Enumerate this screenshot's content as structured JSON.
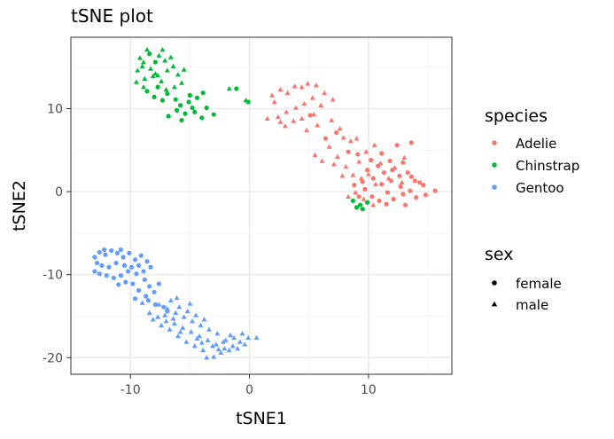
{
  "chart_data": {
    "type": "scatter",
    "title": "tSNE plot",
    "xlabel": "tSNE1",
    "ylabel": "tSNE2",
    "xlim": [
      -15,
      17
    ],
    "ylim": [
      -22,
      18.6
    ],
    "x_ticks": [
      -10,
      0,
      10
    ],
    "x_tick_labels": [
      "-10",
      "0",
      "10"
    ],
    "y_ticks": [
      -20,
      -10,
      0,
      10
    ],
    "y_tick_labels": [
      "-20",
      "-10",
      "0",
      "10"
    ],
    "grid": true,
    "legend_placement": "right",
    "legends": {
      "color": {
        "title": "species",
        "entries": [
          {
            "label": "Adelie",
            "color": "#f8766d"
          },
          {
            "label": "Chinstrap",
            "color": "#00ba38"
          },
          {
            "label": "Gentoo",
            "color": "#619cff"
          }
        ]
      },
      "shape": {
        "title": "sex",
        "entries": [
          {
            "label": "female",
            "shape": "circle"
          },
          {
            "label": "male",
            "shape": "triangle"
          }
        ]
      }
    },
    "series": [
      {
        "species": "Adelie",
        "sex": "female",
        "points": [
          [
            5.1,
            9.2
          ],
          [
            6.4,
            6.4
          ],
          [
            7.3,
            7.1
          ],
          [
            8.3,
            4.8
          ],
          [
            9.1,
            4.5
          ],
          [
            10.2,
            3.8
          ],
          [
            10.8,
            3.1
          ],
          [
            11.3,
            2.3
          ],
          [
            12.0,
            2.6
          ],
          [
            12.6,
            1.9
          ],
          [
            13.3,
            2.3
          ],
          [
            13.9,
            1.3
          ],
          [
            14.6,
            0.8
          ],
          [
            15.6,
            0.1
          ],
          [
            14.8,
            -0.4
          ],
          [
            14.0,
            -0.7
          ],
          [
            13.5,
            0.1
          ],
          [
            12.9,
            -0.3
          ],
          [
            12.1,
            -0.9
          ],
          [
            11.5,
            -1.5
          ],
          [
            10.9,
            -1.1
          ],
          [
            10.3,
            -0.6
          ],
          [
            9.7,
            0.3
          ],
          [
            9.2,
            -0.6
          ],
          [
            8.8,
            0.8
          ],
          [
            9.5,
            1.2
          ],
          [
            10.4,
            1.6
          ],
          [
            11.1,
            0.9
          ],
          [
            11.9,
            1.3
          ],
          [
            12.7,
            0.6
          ],
          [
            13.6,
            1.8
          ],
          [
            14.3,
            1.1
          ],
          [
            12.4,
            5.6
          ],
          [
            13.6,
            5.9
          ],
          [
            11.8,
            3.7
          ],
          [
            11.1,
            4.6
          ],
          [
            12.9,
            3.5
          ],
          [
            9.9,
            2.6
          ],
          [
            11.6,
            -0.1
          ],
          [
            13.1,
            -1.6
          ]
        ]
      },
      {
        "species": "Adelie",
        "sex": "male",
        "points": [
          [
            1.5,
            8.8
          ],
          [
            2.1,
            10.8
          ],
          [
            2.6,
            12.3
          ],
          [
            3.2,
            11.9
          ],
          [
            3.8,
            12.7
          ],
          [
            4.4,
            12.6
          ],
          [
            4.9,
            13.0
          ],
          [
            5.6,
            12.8
          ],
          [
            6.3,
            11.9
          ],
          [
            7.0,
            11.1
          ],
          [
            6.0,
            10.4
          ],
          [
            5.3,
            11.3
          ],
          [
            4.6,
            10.6
          ],
          [
            3.9,
            10.1
          ],
          [
            3.1,
            9.6
          ],
          [
            2.4,
            9.0
          ],
          [
            3.0,
            7.9
          ],
          [
            3.7,
            8.5
          ],
          [
            4.4,
            8.8
          ],
          [
            5.7,
            8.0
          ],
          [
            6.9,
            8.6
          ],
          [
            7.6,
            7.6
          ],
          [
            7.9,
            6.5
          ],
          [
            6.7,
            5.4
          ],
          [
            7.4,
            4.2
          ],
          [
            8.1,
            3.0
          ],
          [
            8.7,
            2.0
          ],
          [
            9.4,
            1.6
          ],
          [
            10.0,
            2.1
          ],
          [
            10.6,
            0.9
          ],
          [
            9.2,
            3.6
          ],
          [
            8.5,
            6.1
          ],
          [
            7.1,
            3.3
          ],
          [
            6.1,
            3.7
          ],
          [
            5.5,
            4.4
          ],
          [
            9.8,
            4.8
          ],
          [
            8.9,
            -0.1
          ],
          [
            9.6,
            -0.9
          ],
          [
            10.4,
            -1.6
          ],
          [
            1.9,
            11.6
          ],
          [
            2.6,
            8.4
          ],
          [
            5.4,
            9.3
          ],
          [
            9.0,
            6.4
          ],
          [
            10.5,
            5.6
          ],
          [
            11.0,
            3.4
          ],
          [
            12.2,
            2.9
          ],
          [
            13.0,
            4.1
          ],
          [
            12.8,
            1.1
          ],
          [
            11.7,
            1.6
          ],
          [
            7.8,
            1.9
          ],
          [
            8.3,
            -0.6
          ],
          [
            4.8,
            7.4
          ]
        ]
      },
      {
        "species": "Chinstrap",
        "sex": "female",
        "points": [
          [
            -8.6,
            12.1
          ],
          [
            -7.7,
            12.6
          ],
          [
            -6.9,
            11.8
          ],
          [
            -6.2,
            11.1
          ],
          [
            -5.8,
            10.4
          ],
          [
            -5.1,
            10.8
          ],
          [
            -4.4,
            11.3
          ],
          [
            -3.9,
            11.9
          ],
          [
            -3.6,
            10.1
          ],
          [
            -4.6,
            9.6
          ],
          [
            -5.4,
            9.4
          ],
          [
            -6.1,
            9.8
          ],
          [
            -5.0,
            11.6
          ],
          [
            -3.0,
            9.3
          ],
          [
            -5.7,
            8.6
          ],
          [
            -6.8,
            9.1
          ],
          [
            -1.1,
            12.4
          ],
          [
            -0.1,
            10.8
          ],
          [
            -7.3,
            11.0
          ],
          [
            -8.0,
            11.4
          ],
          [
            -4.0,
            8.9
          ],
          [
            -7.9,
            15.6
          ],
          [
            -8.4,
            16.6
          ],
          [
            8.7,
            -1.1
          ],
          [
            9.3,
            -1.6
          ],
          [
            9.5,
            -2.1
          ],
          [
            9.9,
            -1.3
          ],
          [
            9.0,
            -1.9
          ],
          [
            -4.8,
            10.1
          ]
        ]
      },
      {
        "species": "Chinstrap",
        "sex": "male",
        "points": [
          [
            -8.8,
            13.6
          ],
          [
            -8.3,
            14.8
          ],
          [
            -7.9,
            14.2
          ],
          [
            -7.4,
            13.3
          ],
          [
            -6.9,
            14.6
          ],
          [
            -6.4,
            15.1
          ],
          [
            -7.1,
            15.8
          ],
          [
            -7.6,
            16.4
          ],
          [
            -6.6,
            16.2
          ],
          [
            -8.9,
            15.6
          ],
          [
            -9.4,
            14.6
          ],
          [
            -9.2,
            16.1
          ],
          [
            -8.6,
            17.1
          ],
          [
            -7.3,
            17.1
          ],
          [
            -6.0,
            14.1
          ],
          [
            -5.7,
            13.1
          ],
          [
            -6.3,
            12.6
          ],
          [
            -7.0,
            12.3
          ],
          [
            -8.1,
            13.9
          ],
          [
            -9.5,
            13.2
          ],
          [
            -8.9,
            12.6
          ],
          [
            -5.5,
            14.7
          ],
          [
            -1.7,
            12.4
          ],
          [
            -0.3,
            11.0
          ],
          [
            -9.0,
            15.1
          ],
          [
            -7.7,
            14.0
          ]
        ]
      },
      {
        "species": "Gentoo",
        "sex": "female",
        "points": [
          [
            -13.0,
            -7.9
          ],
          [
            -12.6,
            -7.3
          ],
          [
            -12.1,
            -7.6
          ],
          [
            -11.6,
            -7.1
          ],
          [
            -11.1,
            -7.4
          ],
          [
            -10.6,
            -7.9
          ],
          [
            -10.1,
            -7.4
          ],
          [
            -9.6,
            -8.2
          ],
          [
            -9.1,
            -7.7
          ],
          [
            -8.6,
            -8.4
          ],
          [
            -8.3,
            -9.1
          ],
          [
            -8.9,
            -9.6
          ],
          [
            -9.5,
            -9.9
          ],
          [
            -10.2,
            -9.6
          ],
          [
            -10.8,
            -10.1
          ],
          [
            -11.4,
            -10.4
          ],
          [
            -12.0,
            -10.1
          ],
          [
            -12.6,
            -9.9
          ],
          [
            -13.0,
            -9.6
          ],
          [
            -12.8,
            -8.6
          ],
          [
            -12.4,
            -8.9
          ],
          [
            -11.8,
            -9.1
          ],
          [
            -11.2,
            -8.6
          ],
          [
            -10.5,
            -8.9
          ],
          [
            -9.9,
            -9.1
          ],
          [
            -9.3,
            -8.9
          ],
          [
            -8.8,
            -10.6
          ],
          [
            -8.4,
            -11.4
          ],
          [
            -8.0,
            -12.1
          ],
          [
            -8.7,
            -12.6
          ],
          [
            -9.3,
            -11.9
          ],
          [
            -9.8,
            -11.1
          ],
          [
            -10.4,
            -10.9
          ],
          [
            -11.0,
            -11.2
          ],
          [
            -7.6,
            -11.1
          ],
          [
            -7.9,
            -13.6
          ],
          [
            -7.2,
            -13.9
          ],
          [
            -6.9,
            -14.4
          ],
          [
            -8.5,
            -13.1
          ],
          [
            -9.6,
            -12.9
          ],
          [
            -12.2,
            -7.0
          ],
          [
            -10.8,
            -7.0
          ]
        ]
      },
      {
        "species": "Gentoo",
        "sex": "male",
        "points": [
          [
            -9.0,
            -13.4
          ],
          [
            -8.4,
            -14.6
          ],
          [
            -7.7,
            -15.1
          ],
          [
            -7.0,
            -15.6
          ],
          [
            -6.3,
            -15.9
          ],
          [
            -5.6,
            -16.4
          ],
          [
            -4.9,
            -16.9
          ],
          [
            -4.2,
            -17.4
          ],
          [
            -3.5,
            -17.9
          ],
          [
            -2.8,
            -18.4
          ],
          [
            -2.1,
            -18.9
          ],
          [
            -1.4,
            -18.6
          ],
          [
            -0.8,
            -18.1
          ],
          [
            -0.1,
            -17.6
          ],
          [
            0.6,
            -17.6
          ],
          [
            -0.6,
            -17.1
          ],
          [
            -1.3,
            -17.6
          ],
          [
            -2.0,
            -17.9
          ],
          [
            -2.7,
            -17.1
          ],
          [
            -3.4,
            -16.6
          ],
          [
            -4.1,
            -16.1
          ],
          [
            -4.8,
            -15.6
          ],
          [
            -5.5,
            -15.1
          ],
          [
            -6.2,
            -14.6
          ],
          [
            -6.9,
            -14.1
          ],
          [
            -7.6,
            -13.6
          ],
          [
            -6.6,
            -13.1
          ],
          [
            -5.9,
            -13.9
          ],
          [
            -5.2,
            -14.4
          ],
          [
            -4.5,
            -14.9
          ],
          [
            -3.8,
            -15.4
          ],
          [
            -3.1,
            -18.6
          ],
          [
            -2.4,
            -19.4
          ],
          [
            -1.7,
            -19.1
          ],
          [
            -1.0,
            -18.9
          ],
          [
            -3.9,
            -19.1
          ],
          [
            -4.6,
            -18.6
          ],
          [
            -5.3,
            -18.1
          ],
          [
            -6.0,
            -17.4
          ],
          [
            -6.7,
            -16.6
          ],
          [
            -7.4,
            -16.1
          ],
          [
            -8.1,
            -15.4
          ],
          [
            -3.0,
            -19.9
          ],
          [
            -2.2,
            -18.1
          ],
          [
            -1.6,
            -17.3
          ],
          [
            -0.4,
            -18.4
          ],
          [
            -4.4,
            -17.7
          ],
          [
            -5.8,
            -16.9
          ],
          [
            -6.4,
            -15.3
          ],
          [
            -7.1,
            -14.9
          ],
          [
            -3.6,
            -20.0
          ],
          [
            -2.6,
            -19.0
          ],
          [
            -4.0,
            -18.2
          ],
          [
            -6.1,
            -12.8
          ],
          [
            -5.0,
            -13.5
          ]
        ]
      }
    ]
  }
}
